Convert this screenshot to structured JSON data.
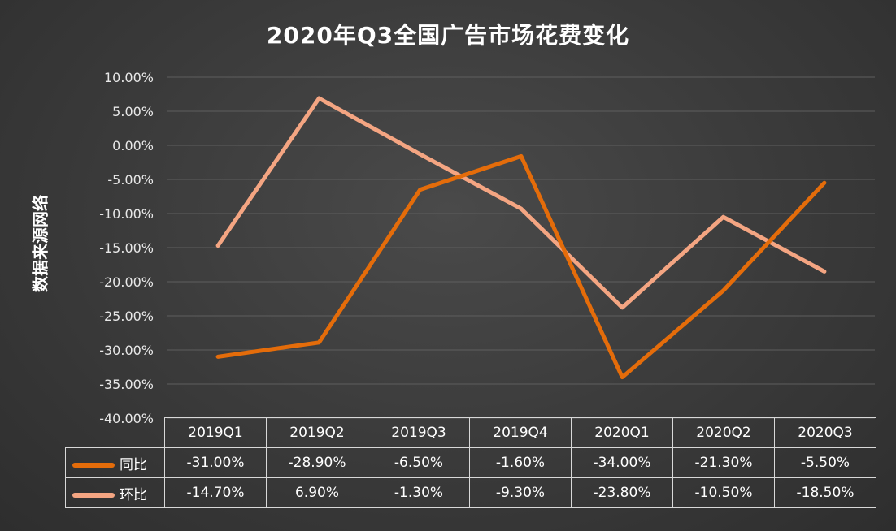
{
  "chart_data": {
    "type": "line",
    "title": "2020年Q3全国广告市场花费变化",
    "ylabel": "数据来源网络",
    "categories": [
      "2019Q1",
      "2019Q2",
      "2019Q3",
      "2019Q4",
      "2020Q1",
      "2020Q2",
      "2020Q3"
    ],
    "yticks": [
      "10.00%",
      "5.00%",
      "0.00%",
      "-5.00%",
      "-10.00%",
      "-15.00%",
      "-20.00%",
      "-25.00%",
      "-30.00%",
      "-35.00%",
      "-40.00%"
    ],
    "ylim": [
      -40,
      10
    ],
    "grid": true,
    "legend": "bottom-table",
    "series": [
      {
        "name": "同比",
        "color": "#e46c0a",
        "values": [
          -31.0,
          -28.9,
          -6.5,
          -1.6,
          -34.0,
          -21.3,
          -5.5
        ],
        "labels": [
          "-31.00%",
          "-28.90%",
          "-6.50%",
          "-1.60%",
          "-34.00%",
          "-21.30%",
          "-5.50%"
        ]
      },
      {
        "name": "环比",
        "color": "#f4a582",
        "values": [
          -14.7,
          6.9,
          -1.3,
          -9.3,
          -23.8,
          -10.5,
          -18.5
        ],
        "labels": [
          "-14.70%",
          "6.90%",
          "-1.30%",
          "-9.30%",
          "-23.80%",
          "-10.50%",
          "-18.50%"
        ]
      }
    ]
  }
}
